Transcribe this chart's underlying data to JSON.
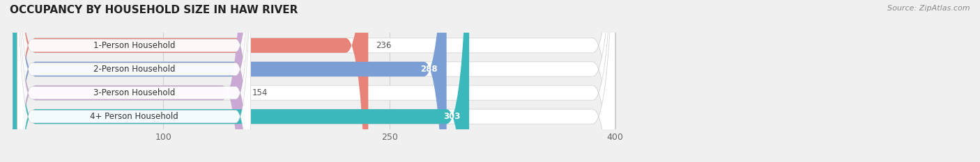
{
  "title": "OCCUPANCY BY HOUSEHOLD SIZE IN HAW RIVER",
  "source": "Source: ZipAtlas.com",
  "categories": [
    "1-Person Household",
    "2-Person Household",
    "3-Person Household",
    "4+ Person Household"
  ],
  "values": [
    236,
    288,
    154,
    303
  ],
  "bar_colors": [
    "#e8837a",
    "#7b9fd4",
    "#c9a8d4",
    "#3ab8bc"
  ],
  "background_color": "#f0f0f0",
  "bar_bg_color": "#e8e8e8",
  "xlim": [
    0,
    460
  ],
  "data_max": 400,
  "xticks": [
    100,
    250,
    400
  ],
  "value_inside": [
    false,
    true,
    false,
    true
  ],
  "bar_height": 0.62,
  "figsize": [
    14.06,
    2.33
  ],
  "dpi": 100,
  "label_bg_color": "#ffffff",
  "grid_color": "#d0d0d0"
}
